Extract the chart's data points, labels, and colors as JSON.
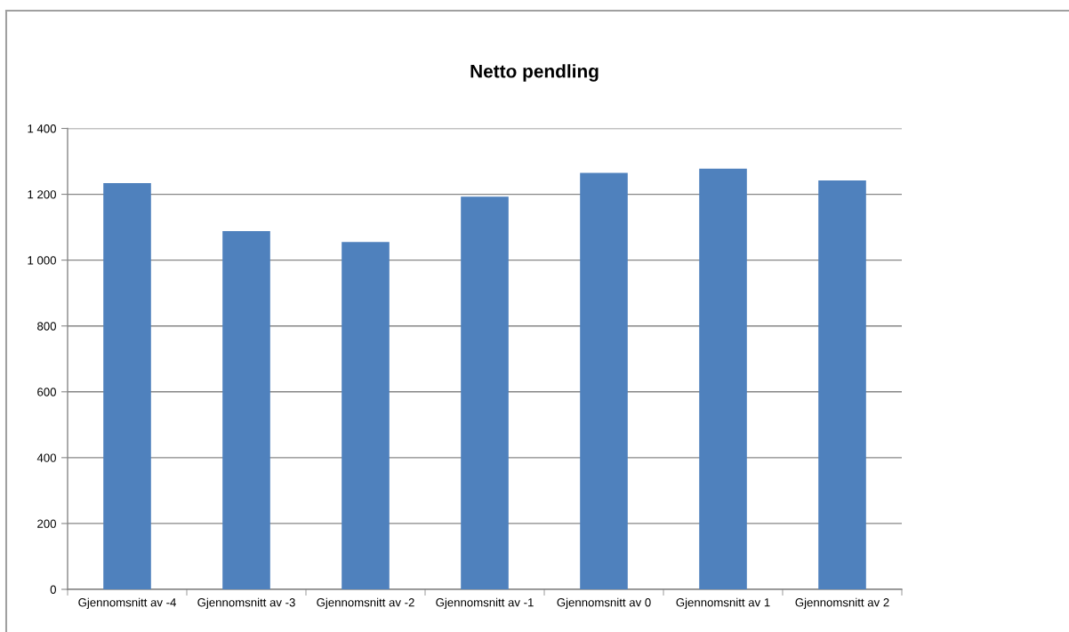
{
  "chart_data": {
    "type": "bar",
    "title": "Netto pendling",
    "categories": [
      "Gjennomsnitt av -4",
      "Gjennomsnitt av -3",
      "Gjennomsnitt av -2",
      "Gjennomsnitt av -1",
      "Gjennomsnitt av 0",
      "Gjennomsnitt av 1",
      "Gjennomsnitt av 2"
    ],
    "values": [
      1234,
      1088,
      1055,
      1193,
      1265,
      1278,
      1242
    ],
    "color": "#4f81bd",
    "ylim": [
      0,
      1400
    ],
    "yticks": [
      0,
      200,
      400,
      600,
      800,
      {
        "value": 1000,
        "label": "1 000"
      },
      {
        "value": 1200,
        "label": "1 200"
      },
      {
        "value": 1400,
        "label": "1 400"
      }
    ],
    "grid": "y",
    "legend": false
  }
}
